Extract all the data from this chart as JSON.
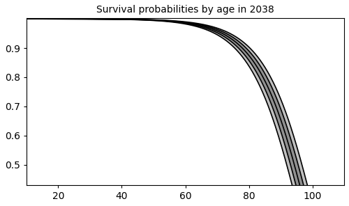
{
  "title": "Survival probabilities by age in 2038",
  "xlim": [
    10,
    110
  ],
  "ylim": [
    0.43,
    1.002
  ],
  "xticks": [
    20,
    40,
    60,
    80,
    100
  ],
  "yticks": [
    0.5,
    0.6,
    0.7,
    0.8,
    0.9
  ],
  "age_start": 10,
  "age_end": 110,
  "n_points": 500,
  "median_color": "#000000",
  "ci95_color": "#909090",
  "ci99_color": "#c0c0c0",
  "line_width": 1.2,
  "background_color": "#ffffff",
  "figsize": [
    5.0,
    2.96
  ],
  "dpi": 100,
  "gompertz_b": 0.115,
  "gompertz_eta": 97.5,
  "spread_95": 1.2,
  "spread_99": 2.4
}
